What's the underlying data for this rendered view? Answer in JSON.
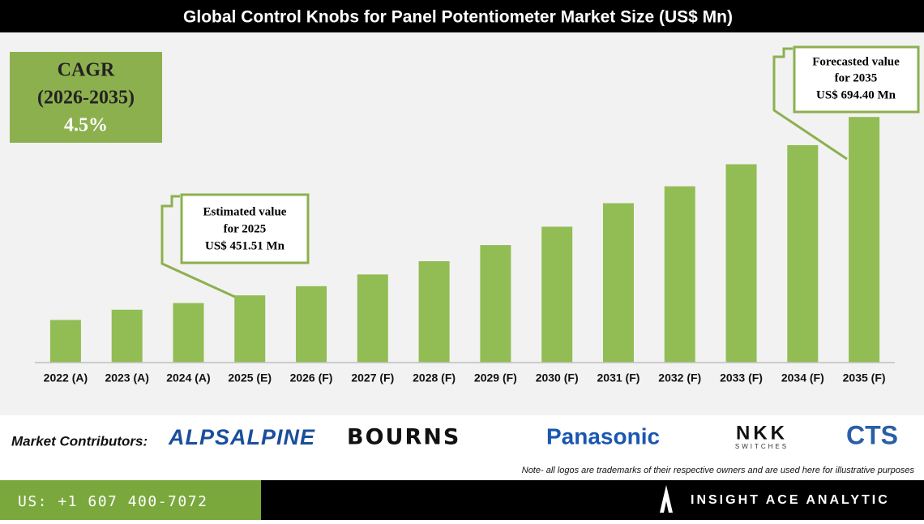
{
  "chart_data": {
    "type": "bar",
    "title": "Global Control Knobs for Panel Potentiometer Market Size (US$ Mn)",
    "categories": [
      "2022 (A)",
      "2023 (A)",
      "2024 (A)",
      "2025 (E)",
      "2026 (F)",
      "2027 (F)",
      "2028 (F)",
      "2029 (F)",
      "2030 (F)",
      "2031 (F)",
      "2032 (F)",
      "2033 (F)",
      "2034 (F)",
      "2035 (F)"
    ],
    "values": [
      418,
      432,
      441,
      451.51,
      464,
      480,
      498,
      520,
      545,
      577,
      600,
      630,
      656,
      694.4
    ],
    "color": "#92bc54",
    "ylim": [
      360,
      720
    ],
    "cagr_box": [
      "CAGR",
      "(2026-2035)",
      "4.5%"
    ],
    "annotations": [
      {
        "lines": [
          "Estimated value",
          "for 2025",
          "US$ 451.51 Mn"
        ]
      },
      {
        "lines": [
          "Forecasted value",
          "for 2035",
          "US$ 694.40 Mn"
        ]
      }
    ]
  },
  "contributors": {
    "label": "Market Contributors:",
    "logos": [
      "ALPSALPINE",
      "BOURNS",
      "Panasonic",
      "NKK",
      "SWITCHES",
      "CTS"
    ],
    "note": "Note- all logos are trademarks of their respective owners and are used here for illustrative purposes"
  },
  "footer": {
    "phone": "US: +1 607 400-7072",
    "brand": "INSIGHT ACE ANALYTIC"
  }
}
